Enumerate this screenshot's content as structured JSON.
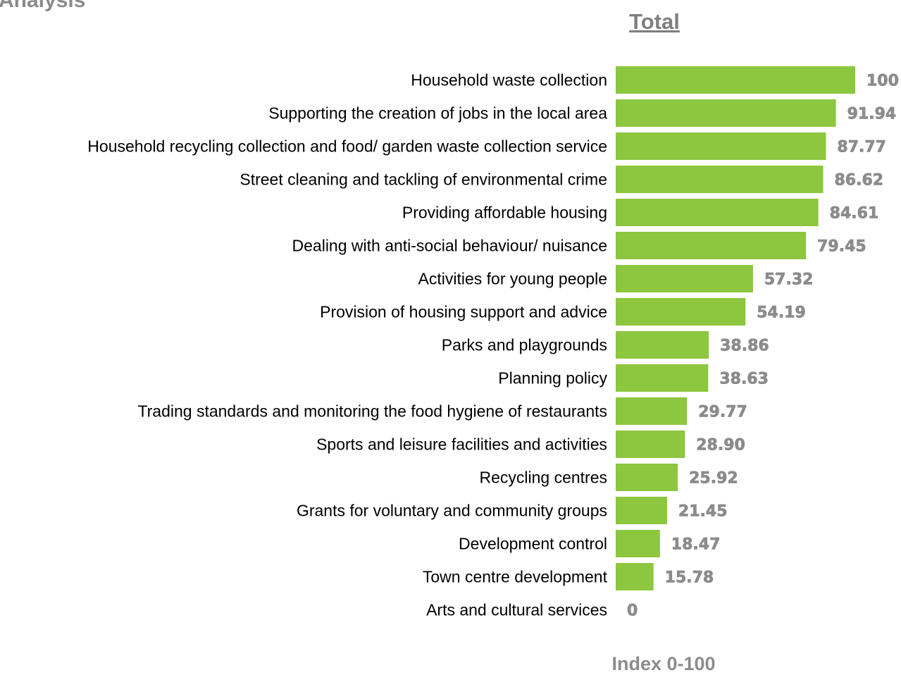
{
  "page": {
    "heading": "Analysis"
  },
  "chart_data": {
    "type": "bar",
    "orientation": "horizontal",
    "title": "Total",
    "xlabel": "Index 0-100",
    "ylabel": "",
    "xlim": [
      0,
      100
    ],
    "grid": false,
    "bar_color": "#8dc63f",
    "value_label_color": "#8c8c8c",
    "categories": [
      "Household waste collection",
      "Supporting the creation of jobs in the local area",
      "Household recycling collection and food/ garden waste collection service",
      "Street cleaning and tackling of environmental crime",
      "Providing affordable housing",
      "Dealing with anti-social behaviour/ nuisance",
      "Activities for young people",
      "Provision of housing support and advice",
      "Parks and playgrounds",
      "Planning policy",
      "Trading standards and monitoring the food hygiene of restaurants",
      "Sports and leisure facilities and activities",
      "Recycling centres",
      "Grants for voluntary and community groups",
      "Development control",
      "Town centre development",
      "Arts and cultural services"
    ],
    "values": [
      100,
      91.94,
      87.77,
      86.62,
      84.61,
      79.45,
      57.32,
      54.19,
      38.86,
      38.63,
      29.77,
      28.9,
      25.92,
      21.45,
      18.47,
      15.78,
      0
    ],
    "value_labels": [
      "100",
      "91.94",
      "87.77",
      "86.62",
      "84.61",
      "79.45",
      "57.32",
      "54.19",
      "38.86",
      "38.63",
      "29.77",
      "28.90",
      "25.92",
      "21.45",
      "18.47",
      "15.78",
      "0"
    ]
  }
}
